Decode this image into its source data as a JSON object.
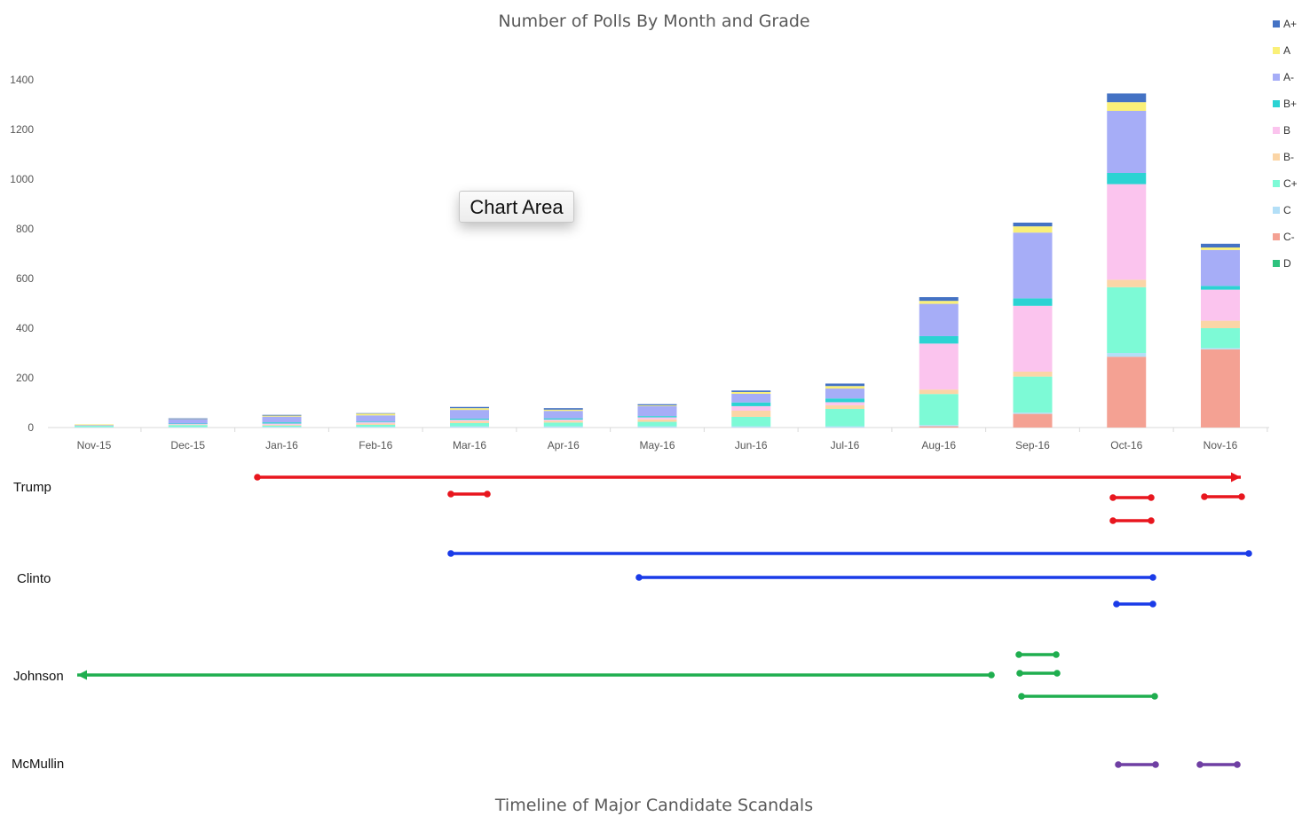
{
  "chart_data": [
    {
      "type": "bar",
      "stacked": true,
      "title": "Number of Polls By Month and Grade",
      "xlabel": "",
      "ylabel": "",
      "ylim": [
        0,
        1400
      ],
      "yticks": [
        0,
        200,
        400,
        600,
        800,
        1000,
        1200,
        1400
      ],
      "grid": false,
      "legend_position": "right",
      "categories": [
        "Nov-15",
        "Dec-15",
        "Jan-16",
        "Feb-16",
        "Mar-16",
        "Apr-16",
        "May-16",
        "Jun-16",
        "Jul-16",
        "Aug-16",
        "Sep-16",
        "Oct-16",
        "Nov-16"
      ],
      "series": [
        {
          "name": "D",
          "color": "#2ec27e",
          "values": [
            0,
            0,
            0,
            0,
            0,
            0,
            0,
            0,
            0,
            0,
            0,
            0,
            0
          ]
        },
        {
          "name": "C-",
          "color": "#f4a193",
          "values": [
            0,
            0,
            0,
            0,
            0,
            0,
            0,
            0,
            0,
            5,
            55,
            285,
            315
          ]
        },
        {
          "name": "C",
          "color": "#b3dff7",
          "values": [
            2,
            2,
            3,
            3,
            5,
            5,
            5,
            5,
            5,
            5,
            5,
            15,
            5
          ]
        },
        {
          "name": "C+",
          "color": "#7dfad6",
          "values": [
            5,
            8,
            5,
            8,
            13,
            15,
            18,
            38,
            70,
            125,
            145,
            265,
            80
          ]
        },
        {
          "name": "B-",
          "color": "#fbd5a6",
          "values": [
            2,
            2,
            3,
            5,
            8,
            7,
            10,
            25,
            15,
            18,
            20,
            30,
            30
          ]
        },
        {
          "name": "B",
          "color": "#fbc4ee",
          "values": [
            0,
            2,
            5,
            5,
            5,
            5,
            8,
            18,
            12,
            185,
            265,
            385,
            125
          ]
        },
        {
          "name": "B+",
          "color": "#2bd3d3",
          "values": [
            0,
            2,
            5,
            3,
            5,
            5,
            5,
            15,
            15,
            30,
            30,
            45,
            15
          ]
        },
        {
          "name": "A-",
          "color": "#a6adf7",
          "values": [
            2,
            17,
            23,
            25,
            35,
            30,
            40,
            35,
            40,
            130,
            265,
            250,
            145
          ]
        },
        {
          "name": "A",
          "color": "#faf078",
          "values": [
            2,
            1,
            4,
            7,
            7,
            5,
            3,
            7,
            10,
            12,
            25,
            35,
            10
          ]
        },
        {
          "name": "A+",
          "color": "#4472c4",
          "values": [
            0,
            3,
            3,
            2,
            5,
            6,
            5,
            6,
            10,
            15,
            15,
            35,
            15
          ]
        }
      ]
    },
    {
      "type": "timeline",
      "title": "Timeline of Major Candidate Scandals",
      "x_axis": "months of the poll chart above (Nov-15 .. Nov-16)",
      "candidates": [
        {
          "name": "Trump",
          "color": "#e8161e",
          "segments": [
            {
              "start": "Jan-16",
              "end": "Nov-16",
              "end_arrow": true
            },
            {
              "start": "Mar-16",
              "end": "Mar-16"
            },
            {
              "start": "Oct-16",
              "end": "Oct-16"
            },
            {
              "start": "Oct-16",
              "end": "Oct-16"
            },
            {
              "start": "Nov-16",
              "end": "Nov-16"
            }
          ]
        },
        {
          "name": "Clinto",
          "color": "#1a3be8",
          "segments": [
            {
              "start": "Mar-16",
              "end": "Nov-16"
            },
            {
              "start": "May-16",
              "end": "Oct-16"
            },
            {
              "start": "Oct-16",
              "end": "Oct-16"
            }
          ]
        },
        {
          "name": "Johnson",
          "color": "#1fae4f",
          "segments": [
            {
              "start": "Sep-16",
              "end": "Nov-15",
              "end_arrow": true
            },
            {
              "start": "Sep-16",
              "end": "Sep-16"
            },
            {
              "start": "Sep-16",
              "end": "Sep-16"
            },
            {
              "start": "Sep-16",
              "end": "Oct-16"
            }
          ]
        },
        {
          "name": "McMullin",
          "color": "#6f3fa3",
          "segments": [
            {
              "start": "Oct-16",
              "end": "Oct-16"
            },
            {
              "start": "Nov-16",
              "end": "Nov-16"
            }
          ]
        }
      ]
    }
  ],
  "tooltip": {
    "label": "Chart Area"
  }
}
